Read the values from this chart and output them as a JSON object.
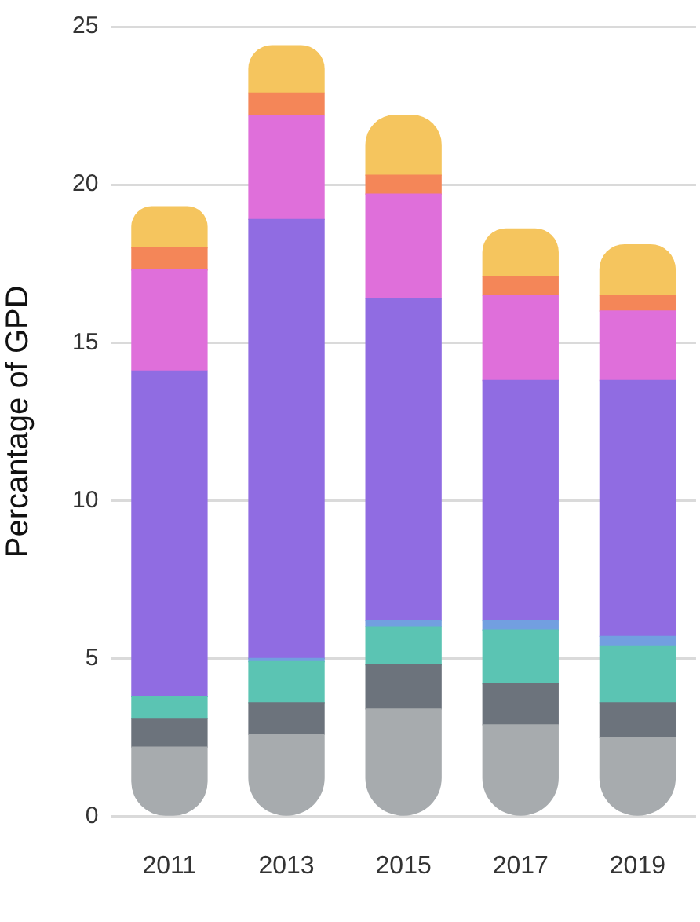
{
  "chart_data": {
    "type": "bar",
    "stacked": true,
    "ylabel": "Percantage of GPD",
    "categories": [
      "2011",
      "2013",
      "2015",
      "2017",
      "2019"
    ],
    "series": [
      {
        "color": "#a7abae",
        "values": [
          2.2,
          2.6,
          3.4,
          2.9,
          2.5
        ]
      },
      {
        "color": "#6c737c",
        "values": [
          0.9,
          1.0,
          1.4,
          1.3,
          1.1
        ]
      },
      {
        "color": "#5bc4b3",
        "values": [
          0.7,
          1.3,
          1.2,
          1.7,
          1.8
        ]
      },
      {
        "color": "#729fe0",
        "values": [
          0,
          0.1,
          0.2,
          0.3,
          0.3
        ]
      },
      {
        "color": "#906ce2",
        "values": [
          10.3,
          13.9,
          10.2,
          7.6,
          8.1
        ]
      },
      {
        "color": "#df6fda",
        "values": [
          3.2,
          3.3,
          3.3,
          2.7,
          2.2
        ]
      },
      {
        "color": "#f48658",
        "values": [
          0.7,
          0.7,
          0.6,
          0.6,
          0.5
        ]
      },
      {
        "color": "#f5c55e",
        "values": [
          1.3,
          1.5,
          1.9,
          1.5,
          1.6
        ]
      }
    ],
    "ylim": [
      0,
      25
    ],
    "yticks": [
      0,
      5,
      10,
      15,
      20,
      25
    ],
    "grid": "y",
    "legend": false
  }
}
